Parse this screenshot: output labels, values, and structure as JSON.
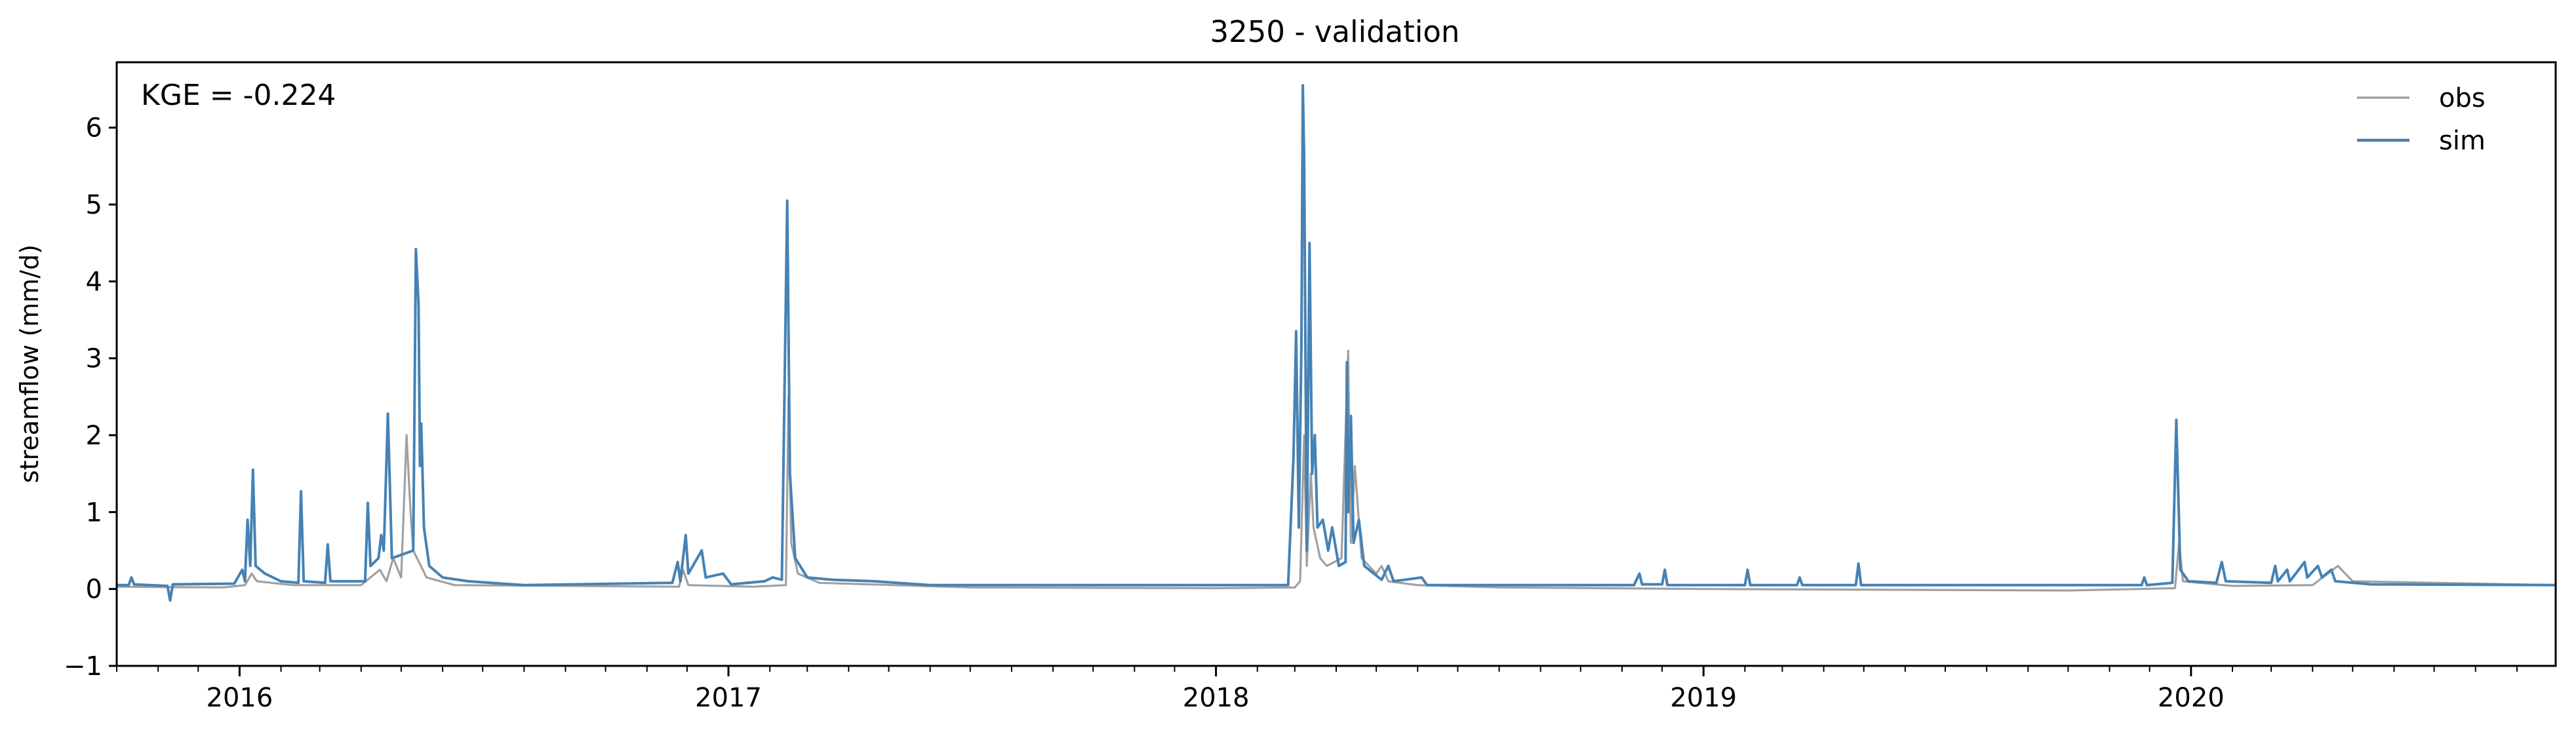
{
  "chart_data": {
    "type": "line",
    "title": "3250 - validation",
    "xlabel": "",
    "ylabel": "streamflow (mm/d)",
    "annotation": "KGE = -0.224",
    "xlim": [
      "2015-10-01",
      "2020-09-30"
    ],
    "ylim": [
      -1,
      6.85
    ],
    "yticks": [
      -1,
      0,
      1,
      2,
      3,
      4,
      5,
      6
    ],
    "ytick_labels": [
      "−1",
      "0",
      "1",
      "2",
      "3",
      "4",
      "5",
      "6"
    ],
    "xticks": [
      "2016-01-01",
      "2017-01-01",
      "2018-01-01",
      "2019-01-01",
      "2020-01-01"
    ],
    "xtick_labels": [
      "2016",
      "2017",
      "2018",
      "2019",
      "2020"
    ],
    "grid": false,
    "legend_position": "top-right",
    "series": [
      {
        "name": "obs",
        "color": "#a0a0a0",
        "points": [
          [
            "2015-10-01",
            0.03
          ],
          [
            "2015-12-20",
            0.02
          ],
          [
            "2016-01-05",
            0.05
          ],
          [
            "2016-01-10",
            0.2
          ],
          [
            "2016-01-14",
            0.1
          ],
          [
            "2016-02-10",
            0.05
          ],
          [
            "2016-04-01",
            0.05
          ],
          [
            "2016-04-15",
            0.25
          ],
          [
            "2016-04-20",
            0.1
          ],
          [
            "2016-04-25",
            0.4
          ],
          [
            "2016-05-01",
            0.15
          ],
          [
            "2016-05-05",
            2.0
          ],
          [
            "2016-05-08",
            1.0
          ],
          [
            "2016-05-10",
            0.5
          ],
          [
            "2016-05-20",
            0.15
          ],
          [
            "2016-06-10",
            0.05
          ],
          [
            "2016-11-25",
            0.03
          ],
          [
            "2016-11-28",
            0.25
          ],
          [
            "2016-12-02",
            0.05
          ],
          [
            "2017-01-20",
            0.03
          ],
          [
            "2017-02-13",
            0.05
          ],
          [
            "2017-02-15",
            2.5
          ],
          [
            "2017-02-17",
            0.6
          ],
          [
            "2017-02-22",
            0.2
          ],
          [
            "2017-03-10",
            0.08
          ],
          [
            "2017-07-01",
            0.02
          ],
          [
            "2018-01-01",
            0.01
          ],
          [
            "2018-03-01",
            0.02
          ],
          [
            "2018-03-05",
            0.1
          ],
          [
            "2018-03-08",
            2.0
          ],
          [
            "2018-03-10",
            0.3
          ],
          [
            "2018-03-13",
            1.5
          ],
          [
            "2018-03-15",
            0.8
          ],
          [
            "2018-03-20",
            0.4
          ],
          [
            "2018-03-25",
            0.3
          ],
          [
            "2018-04-05",
            0.4
          ],
          [
            "2018-04-10",
            3.1
          ],
          [
            "2018-04-12",
            0.6
          ],
          [
            "2018-04-15",
            1.6
          ],
          [
            "2018-04-20",
            0.4
          ],
          [
            "2018-05-01",
            0.2
          ],
          [
            "2018-05-05",
            0.3
          ],
          [
            "2018-05-10",
            0.1
          ],
          [
            "2018-06-01",
            0.05
          ],
          [
            "2018-08-01",
            0.02
          ],
          [
            "2019-01-01",
            0.0
          ],
          [
            "2019-10-01",
            -0.02
          ],
          [
            "2019-12-20",
            0.01
          ],
          [
            "2019-12-23",
            0.6
          ],
          [
            "2019-12-26",
            0.1
          ],
          [
            "2020-02-01",
            0.04
          ],
          [
            "2020-04-01",
            0.05
          ],
          [
            "2020-04-20",
            0.3
          ],
          [
            "2020-05-01",
            0.1
          ],
          [
            "2020-09-30",
            0.05
          ]
        ]
      },
      {
        "name": "sim",
        "color": "#4682b4",
        "points": [
          [
            "2015-10-01",
            0.05
          ],
          [
            "2015-10-10",
            0.05
          ],
          [
            "2015-10-12",
            0.15
          ],
          [
            "2015-10-14",
            0.06
          ],
          [
            "2015-11-08",
            0.04
          ],
          [
            "2015-11-10",
            -0.15
          ],
          [
            "2015-11-12",
            0.06
          ],
          [
            "2015-12-28",
            0.07
          ],
          [
            "2016-01-03",
            0.25
          ],
          [
            "2016-01-05",
            0.1
          ],
          [
            "2016-01-07",
            0.9
          ],
          [
            "2016-01-09",
            0.3
          ],
          [
            "2016-01-11",
            1.55
          ],
          [
            "2016-01-13",
            0.3
          ],
          [
            "2016-01-20",
            0.2
          ],
          [
            "2016-02-01",
            0.1
          ],
          [
            "2016-02-14",
            0.08
          ],
          [
            "2016-02-16",
            1.27
          ],
          [
            "2016-02-18",
            0.1
          ],
          [
            "2016-03-05",
            0.08
          ],
          [
            "2016-03-07",
            0.58
          ],
          [
            "2016-03-09",
            0.1
          ],
          [
            "2016-04-04",
            0.1
          ],
          [
            "2016-04-06",
            1.12
          ],
          [
            "2016-04-08",
            0.3
          ],
          [
            "2016-04-14",
            0.4
          ],
          [
            "2016-04-16",
            0.7
          ],
          [
            "2016-04-18",
            0.5
          ],
          [
            "2016-04-21",
            2.28
          ],
          [
            "2016-04-24",
            0.4
          ],
          [
            "2016-05-10",
            0.5
          ],
          [
            "2016-05-12",
            4.42
          ],
          [
            "2016-05-14",
            3.7
          ],
          [
            "2016-05-15",
            1.6
          ],
          [
            "2016-05-16",
            2.15
          ],
          [
            "2016-05-18",
            0.8
          ],
          [
            "2016-05-22",
            0.3
          ],
          [
            "2016-06-01",
            0.15
          ],
          [
            "2016-06-20",
            0.1
          ],
          [
            "2016-08-01",
            0.05
          ],
          [
            "2016-11-20",
            0.08
          ],
          [
            "2016-11-24",
            0.35
          ],
          [
            "2016-11-26",
            0.1
          ],
          [
            "2016-11-30",
            0.7
          ],
          [
            "2016-12-02",
            0.2
          ],
          [
            "2016-12-12",
            0.5
          ],
          [
            "2016-12-15",
            0.15
          ],
          [
            "2016-12-28",
            0.2
          ],
          [
            "2017-01-03",
            0.06
          ],
          [
            "2017-01-28",
            0.1
          ],
          [
            "2017-02-03",
            0.15
          ],
          [
            "2017-02-10",
            0.12
          ],
          [
            "2017-02-14",
            5.05
          ],
          [
            "2017-02-16",
            1.5
          ],
          [
            "2017-02-20",
            0.4
          ],
          [
            "2017-03-01",
            0.15
          ],
          [
            "2017-03-20",
            0.12
          ],
          [
            "2017-04-20",
            0.1
          ],
          [
            "2017-06-01",
            0.05
          ],
          [
            "2017-12-01",
            0.05
          ],
          [
            "2018-01-10",
            0.05
          ],
          [
            "2018-02-15",
            0.05
          ],
          [
            "2018-02-24",
            0.05
          ],
          [
            "2018-02-28",
            1.7
          ],
          [
            "2018-03-02",
            3.35
          ],
          [
            "2018-03-04",
            0.8
          ],
          [
            "2018-03-06",
            3.2
          ],
          [
            "2018-03-07",
            6.55
          ],
          [
            "2018-03-08",
            5.6
          ],
          [
            "2018-03-10",
            0.5
          ],
          [
            "2018-03-12",
            4.5
          ],
          [
            "2018-03-14",
            1.5
          ],
          [
            "2018-03-16",
            2.0
          ],
          [
            "2018-03-18",
            0.8
          ],
          [
            "2018-03-22",
            0.9
          ],
          [
            "2018-03-26",
            0.5
          ],
          [
            "2018-03-29",
            0.8
          ],
          [
            "2018-04-03",
            0.3
          ],
          [
            "2018-04-08",
            0.35
          ],
          [
            "2018-04-09",
            2.95
          ],
          [
            "2018-04-10",
            1.0
          ],
          [
            "2018-04-12",
            2.25
          ],
          [
            "2018-04-14",
            0.6
          ],
          [
            "2018-04-18",
            0.9
          ],
          [
            "2018-04-22",
            0.3
          ],
          [
            "2018-05-05",
            0.12
          ],
          [
            "2018-05-10",
            0.3
          ],
          [
            "2018-05-14",
            0.1
          ],
          [
            "2018-06-04",
            0.15
          ],
          [
            "2018-06-08",
            0.05
          ],
          [
            "2018-08-01",
            0.05
          ],
          [
            "2018-11-10",
            0.05
          ],
          [
            "2018-11-14",
            0.2
          ],
          [
            "2018-11-16",
            0.06
          ],
          [
            "2018-12-01",
            0.06
          ],
          [
            "2018-12-03",
            0.25
          ],
          [
            "2018-12-05",
            0.05
          ],
          [
            "2019-02-01",
            0.05
          ],
          [
            "2019-02-03",
            0.25
          ],
          [
            "2019-02-05",
            0.05
          ],
          [
            "2019-03-12",
            0.05
          ],
          [
            "2019-03-14",
            0.15
          ],
          [
            "2019-03-16",
            0.05
          ],
          [
            "2019-04-25",
            0.05
          ],
          [
            "2019-04-27",
            0.33
          ],
          [
            "2019-04-29",
            0.05
          ],
          [
            "2019-11-25",
            0.05
          ],
          [
            "2019-11-27",
            0.15
          ],
          [
            "2019-11-29",
            0.05
          ],
          [
            "2019-12-18",
            0.08
          ],
          [
            "2019-12-21",
            2.2
          ],
          [
            "2019-12-24",
            0.25
          ],
          [
            "2019-12-30",
            0.1
          ],
          [
            "2020-01-20",
            0.08
          ],
          [
            "2020-01-24",
            0.35
          ],
          [
            "2020-01-27",
            0.1
          ],
          [
            "2020-03-01",
            0.08
          ],
          [
            "2020-03-04",
            0.3
          ],
          [
            "2020-03-06",
            0.1
          ],
          [
            "2020-03-13",
            0.25
          ],
          [
            "2020-03-15",
            0.1
          ],
          [
            "2020-03-26",
            0.35
          ],
          [
            "2020-03-28",
            0.15
          ],
          [
            "2020-04-05",
            0.3
          ],
          [
            "2020-04-08",
            0.15
          ],
          [
            "2020-04-15",
            0.25
          ],
          [
            "2020-04-18",
            0.1
          ],
          [
            "2020-05-15",
            0.06
          ],
          [
            "2020-09-30",
            0.05
          ]
        ]
      }
    ]
  }
}
